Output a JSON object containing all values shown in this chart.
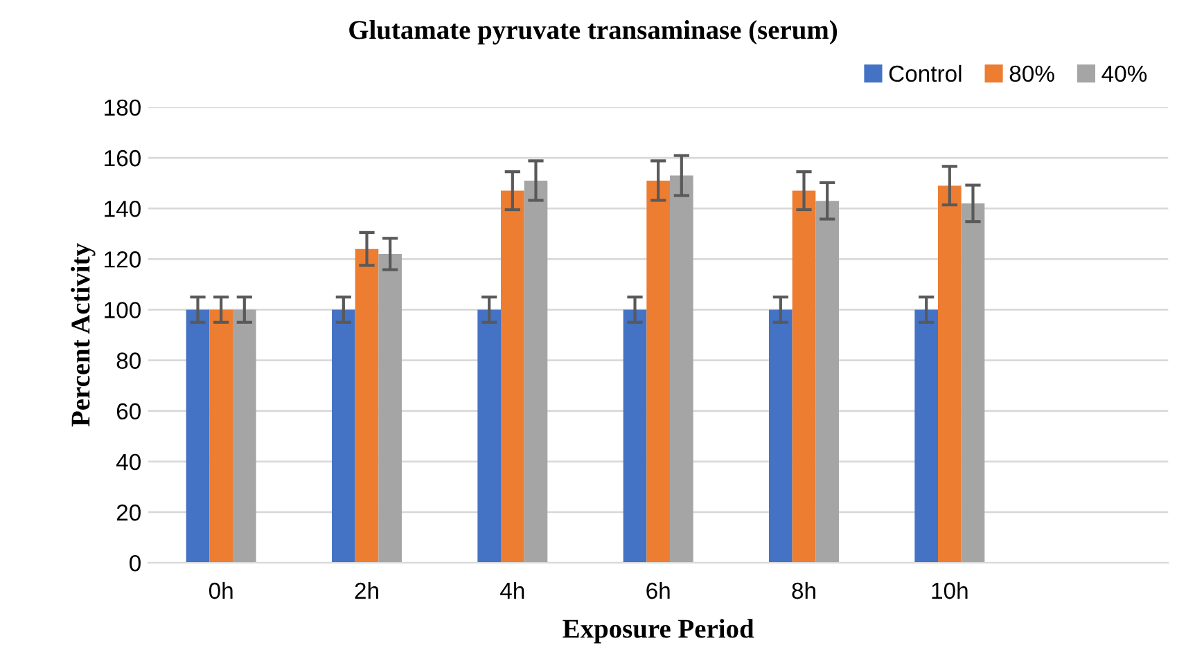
{
  "chart_data": {
    "type": "bar",
    "title": "Glutamate pyruvate transaminase (serum)",
    "xlabel": "Exposure Period",
    "ylabel": "Percent Activity",
    "categories": [
      "0h",
      "2h",
      "4h",
      "6h",
      "8h",
      "10h",
      null
    ],
    "series": [
      {
        "name": "Control",
        "color": "#4472c4",
        "values": [
          100,
          100,
          100,
          100,
          100,
          100,
          null
        ],
        "errors": [
          5,
          5,
          5,
          5,
          5,
          5,
          null
        ]
      },
      {
        "name": "80%",
        "color": "#ed7d31",
        "values": [
          100,
          124,
          147,
          151,
          147,
          149,
          null
        ],
        "errors": [
          5,
          6.5,
          7.5,
          7.8,
          7.5,
          7.6,
          null
        ]
      },
      {
        "name": "40%",
        "color": "#a5a5a5",
        "values": [
          100,
          122,
          151,
          153,
          143,
          142,
          null
        ],
        "errors": [
          5,
          6.2,
          7.8,
          7.9,
          7.2,
          7.2,
          null
        ]
      }
    ],
    "ylim": [
      0,
      180
    ],
    "yticks": [
      0,
      20,
      40,
      60,
      80,
      100,
      120,
      140,
      160,
      180
    ],
    "grid": "y",
    "legend": "top right"
  }
}
